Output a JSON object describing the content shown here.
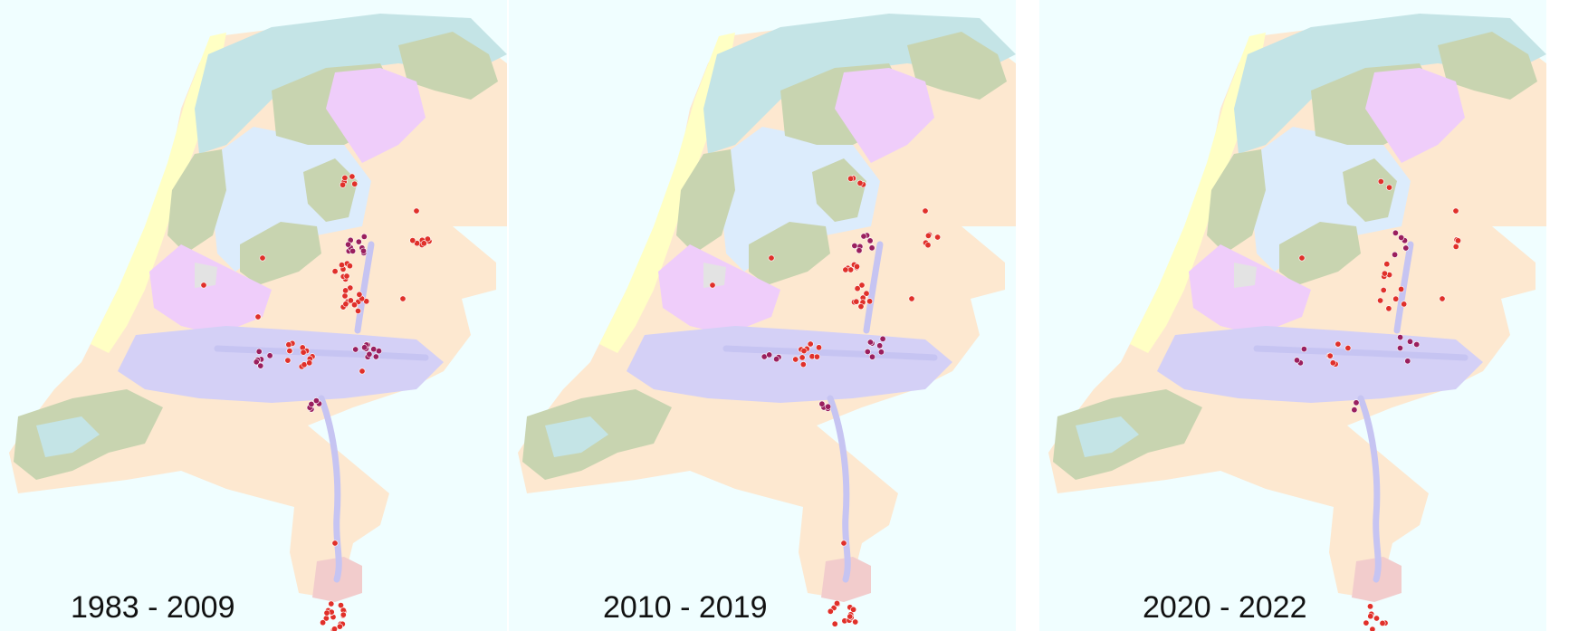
{
  "colors": {
    "sea": "#f0feff",
    "dunes": "#ffffc4",
    "wadden": "#c4e4e6",
    "ijsselmeer": "#dcecfc",
    "clay": "#c8d4b0",
    "peat": "#efcdfa",
    "river": "#d4d0f6",
    "sand": "#fde8d0",
    "loess": "#f2cccc",
    "urban": "#e3e3e3",
    "river_line": "#c6c4f2",
    "obs_red": "#e0302a",
    "obs_purple": "#9a1f5e"
  },
  "panels": [
    {
      "id": "p1",
      "period": "1983 - 2009",
      "density": "high",
      "icons": [
        "map-background",
        "observation-dots"
      ]
    },
    {
      "id": "p2",
      "period": "2010 - 2019",
      "density": "medium",
      "icons": [
        "map-background",
        "observation-dots"
      ]
    },
    {
      "id": "p3",
      "period": "2020 - 2022",
      "density": "low",
      "icons": [
        "map-background",
        "observation-dots"
      ]
    }
  ]
}
